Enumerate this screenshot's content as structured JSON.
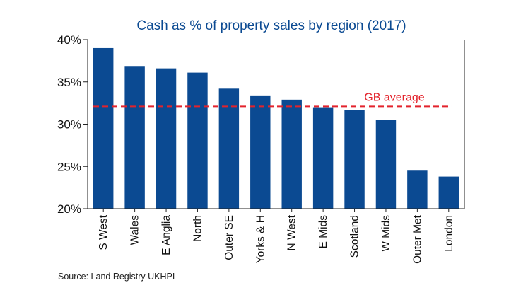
{
  "chart_data": {
    "type": "bar",
    "title": "Cash as % of property sales by region (2017)",
    "categories": [
      "S West",
      "Wales",
      "E Anglia",
      "North",
      "Outer SE",
      "Yorks & H",
      "N West",
      "E Mids",
      "Scotland",
      "W Mids",
      "Outer Met",
      "London"
    ],
    "values": [
      39.0,
      36.8,
      36.6,
      36.1,
      34.2,
      33.4,
      32.9,
      32.0,
      31.7,
      30.5,
      24.5,
      23.8
    ],
    "ylim": [
      20,
      40
    ],
    "yticks": [
      20,
      25,
      30,
      35,
      40
    ],
    "ytick_labels": [
      "20%",
      "25%",
      "30%",
      "35%",
      "40%"
    ],
    "xlabel": "",
    "ylabel": "",
    "grid": false,
    "reference_line": {
      "label": "GB average",
      "value": 32.1,
      "style": "dashed"
    },
    "bar_color": "#0b4a92",
    "title_color": "#0b4a92",
    "reference_color": "#e3232c"
  },
  "source": "Source: Land Registry UKHPI"
}
